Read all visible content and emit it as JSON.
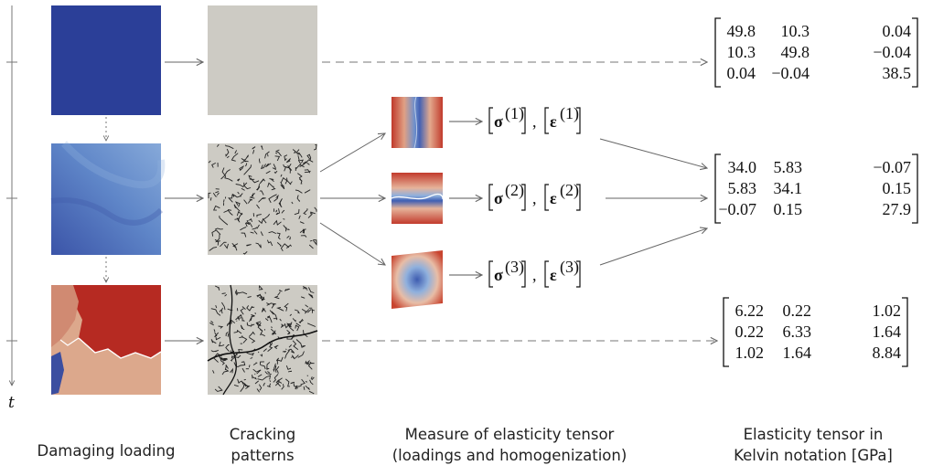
{
  "time_axis_label": "t",
  "stages": [
    {
      "damage_image": "damage-field-undamaged",
      "crack_image": "crack-pattern-none"
    },
    {
      "damage_image": "damage-field-partial",
      "crack_image": "crack-pattern-diffuse"
    },
    {
      "damage_image": "damage-field-fractured",
      "crack_image": "crack-pattern-localized"
    }
  ],
  "loadings": [
    {
      "pair": "[σ(1)] , [ε(1)]",
      "sigma": "σ",
      "epsilon": "ε",
      "superscript": "(1)",
      "comma": ",",
      "image": "loading-tension-x"
    },
    {
      "pair": "[σ(2)] , [ε(2)]",
      "sigma": "σ",
      "epsilon": "ε",
      "superscript": "(2)",
      "comma": ",",
      "image": "loading-tension-y"
    },
    {
      "pair": "[σ(3)] , [ε(3)]",
      "sigma": "σ",
      "epsilon": "ε",
      "superscript": "(3)",
      "comma": ",",
      "image": "loading-shear"
    }
  ],
  "tensors": [
    [
      [
        "49.8",
        "10.3",
        "0.04"
      ],
      [
        "10.3",
        "49.8",
        "−0.04"
      ],
      [
        "0.04",
        "−0.04",
        "38.5"
      ]
    ],
    [
      [
        "34.0",
        "5.83",
        "−0.07"
      ],
      [
        "5.83",
        "34.1",
        "0.15"
      ],
      [
        "−0.07",
        "0.15",
        "27.9"
      ]
    ],
    [
      [
        "6.22",
        "0.22",
        "1.02"
      ],
      [
        "0.22",
        "6.33",
        "1.64"
      ],
      [
        "1.02",
        "1.64",
        "8.84"
      ]
    ]
  ],
  "captions": {
    "damaging": [
      "Damaging loading"
    ],
    "cracking": [
      "Cracking",
      "patterns"
    ],
    "measure": [
      "Measure of elasticity tensor",
      "(loadings and homogenization)"
    ],
    "tensor": [
      "Elasticity tensor in",
      "Kelvin notation [GPa]"
    ]
  },
  "colors": {
    "damage_low": "#2b3f98",
    "damage_high": "#b8241f",
    "crack_background": "#cdcbc4",
    "arrow": "#666666"
  }
}
